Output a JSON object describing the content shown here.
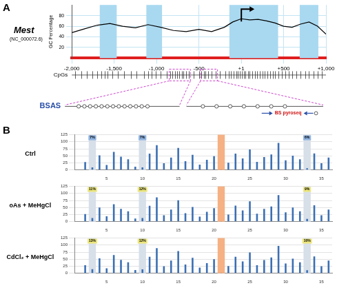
{
  "panel_labels": [
    "A",
    "B"
  ],
  "gene": {
    "name": "Mest",
    "accession": "(NC_000072.6)"
  },
  "chart_data": [
    {
      "type": "line",
      "y_label": "GC Percentage",
      "color": "#000000",
      "grid": true,
      "x": [
        -2000,
        -1850,
        -1700,
        -1550,
        -1400,
        -1250,
        -1100,
        -950,
        -800,
        -650,
        -500,
        -350,
        -200,
        -100,
        0,
        100,
        200,
        300,
        400,
        500,
        600,
        700,
        800,
        900,
        1000
      ],
      "values": [
        48,
        55,
        62,
        65,
        60,
        57,
        63,
        58,
        52,
        50,
        54,
        50,
        58,
        68,
        74,
        72,
        73,
        70,
        66,
        60,
        58,
        64,
        68,
        60,
        45
      ],
      "xlim": [
        -2000,
        1000
      ],
      "xticks": [
        {
          "value": -2000,
          "label": "-2,000"
        },
        {
          "value": -1500,
          "label": "-1,500"
        },
        {
          "value": -1000,
          "label": "-1,000"
        },
        -500,
        {
          "value": 1,
          "label": "+1"
        },
        {
          "value": 500,
          "label": "+500"
        },
        {
          "value": 1000,
          "label": "+1,000"
        }
      ],
      "ylim": [
        0,
        100
      ],
      "yticks": [
        20,
        40,
        60,
        80
      ],
      "cpg_islands": [
        [
          -1670,
          -1470
        ],
        [
          -1120,
          -935
        ],
        [
          -140,
          435
        ],
        [
          690,
          910
        ]
      ],
      "island_color": "#a9d9f0",
      "tss": 1,
      "track_label": "CpGs",
      "cpg_sites": [
        -1960,
        -1890,
        -1820,
        -1760,
        -1700,
        -1655,
        -1610,
        -1580,
        -1520,
        -1460,
        -1380,
        -1300,
        -1240,
        -1150,
        -1100,
        -1060,
        -1010,
        -950,
        -880,
        -840,
        -810,
        -780,
        -760,
        -730,
        -700,
        -680,
        -650,
        -620,
        -560,
        -500,
        -470,
        -440,
        -420,
        -390,
        -350,
        -300,
        -250,
        -190,
        -150,
        -120,
        -90,
        -60,
        -40,
        -20,
        10,
        30,
        50,
        80,
        100,
        130,
        160,
        190,
        220,
        250,
        280,
        310,
        340,
        370,
        400,
        440,
        480,
        520,
        560,
        600,
        650,
        700,
        760,
        800,
        850,
        900,
        950
      ],
      "bsas": {
        "label": "BSAS",
        "regions": [
          {
            "start": -850,
            "end": -600,
            "cpg_count": 13
          },
          {
            "start": -480,
            "end": -280,
            "cpg_count": 7
          }
        ],
        "pyroseq_label": "BS pyroseq"
      }
    },
    {
      "type": "bar",
      "title": "Ctrl",
      "color": "#3b6fb3",
      "grid": true,
      "categories": [
        null,
        null,
        null,
        null,
        "5",
        null,
        null,
        null,
        null,
        "10",
        null,
        null,
        null,
        null,
        "15",
        null,
        null,
        null,
        null,
        "20",
        null,
        null,
        null,
        null,
        "25",
        null,
        null,
        null,
        null,
        "30",
        null,
        null,
        null,
        null,
        "35",
        null
      ],
      "values": [
        0,
        28,
        9,
        52,
        18,
        64,
        47,
        38,
        12,
        9,
        58,
        88,
        24,
        44,
        78,
        31,
        54,
        19,
        36,
        49,
        2,
        26,
        58,
        41,
        73,
        29,
        46,
        55,
        96,
        34,
        51,
        38,
        6,
        59,
        24,
        44
      ],
      "ylim": [
        0,
        125
      ],
      "yticks": [
        0,
        25,
        50,
        75,
        100,
        125
      ],
      "annotations": [
        {
          "position": 3,
          "label": "7%",
          "color": "#8fb3e0"
        },
        {
          "position": 10,
          "label": "7%",
          "color": "#8fb3e0"
        },
        {
          "position": 33,
          "label": "6%",
          "color": "#8fb3e0"
        }
      ],
      "reference": {
        "position": 21,
        "color": "#f5b183"
      }
    },
    {
      "type": "bar",
      "title": "oAs + MeHgCl",
      "color": "#3b6fb3",
      "grid": true,
      "categories": [
        null,
        null,
        null,
        null,
        "5",
        null,
        null,
        null,
        null,
        "10",
        null,
        null,
        null,
        null,
        "15",
        null,
        null,
        null,
        null,
        "20",
        null,
        null,
        null,
        null,
        "25",
        null,
        null,
        null,
        null,
        "30",
        null,
        null,
        null,
        null,
        "35",
        null
      ],
      "values": [
        0,
        27,
        13,
        50,
        19,
        62,
        45,
        37,
        11,
        13,
        56,
        86,
        23,
        43,
        76,
        30,
        52,
        18,
        35,
        48,
        2,
        25,
        57,
        40,
        72,
        28,
        45,
        54,
        94,
        33,
        50,
        37,
        10,
        58,
        23,
        43
      ],
      "ylim": [
        0,
        125
      ],
      "yticks": [
        0,
        25,
        50,
        75,
        100,
        125
      ],
      "annotations": [
        {
          "position": 3,
          "label": "11%",
          "color": "#ece67e"
        },
        {
          "position": 10,
          "label": "12%",
          "color": "#ece67e"
        },
        {
          "position": 33,
          "label": "9%",
          "color": "#ece67e"
        }
      ],
      "reference": {
        "position": 21,
        "color": "#f5b183"
      }
    },
    {
      "type": "bar",
      "title": "CdCl₂ + MeHgCl",
      "color": "#3b6fb3",
      "grid": true,
      "categories": [
        null,
        null,
        null,
        null,
        "5",
        null,
        null,
        null,
        null,
        "10",
        null,
        null,
        null,
        null,
        "15",
        null,
        null,
        null,
        null,
        "20",
        null,
        null,
        null,
        null,
        "25",
        null,
        null,
        null,
        null,
        "30",
        null,
        null,
        null,
        null,
        "35",
        null
      ],
      "values": [
        0,
        29,
        15,
        53,
        18,
        65,
        48,
        39,
        12,
        14,
        59,
        89,
        25,
        45,
        79,
        31,
        55,
        20,
        36,
        50,
        2,
        26,
        59,
        42,
        74,
        29,
        47,
        56,
        97,
        35,
        52,
        39,
        11,
        60,
        25,
        45
      ],
      "ylim": [
        0,
        125
      ],
      "yticks": [
        0,
        25,
        50,
        75,
        100,
        125
      ],
      "annotations": [
        {
          "position": 3,
          "label": "13%",
          "color": "#ece67e"
        },
        {
          "position": 10,
          "label": "12%",
          "color": "#ece67e"
        },
        {
          "position": 33,
          "label": "10%",
          "color": "#ece67e"
        }
      ],
      "reference": {
        "position": 21,
        "color": "#f5b183"
      }
    }
  ]
}
